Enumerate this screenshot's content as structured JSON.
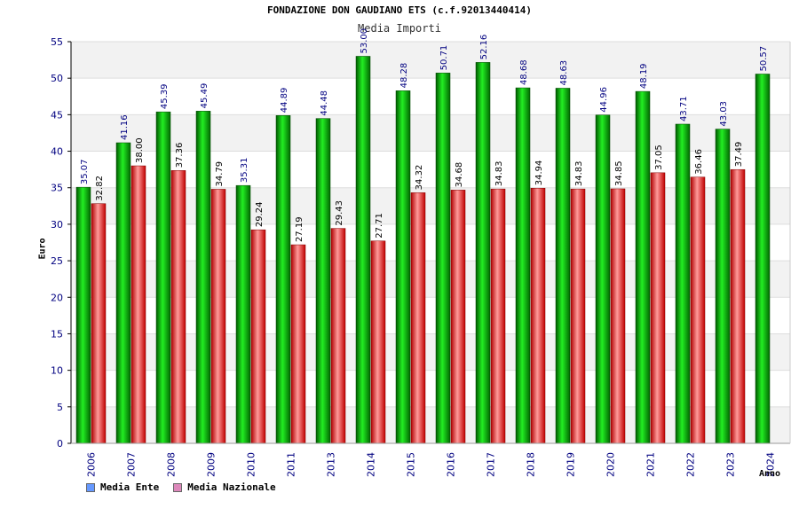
{
  "chart_data": {
    "type": "bar",
    "title": "FONDAZIONE DON GAUDIANO ETS (c.f.92013440414)",
    "subtitle": "Media Importi",
    "xlabel": "Anno",
    "ylabel": "Euro",
    "ylim": [
      0,
      55
    ],
    "yticks": [
      0,
      5,
      10,
      15,
      20,
      25,
      30,
      35,
      40,
      45,
      50,
      55
    ],
    "grid": true,
    "legend_position": "bottom-left",
    "categories": [
      "2006",
      "2007",
      "2008",
      "2009",
      "2010",
      "2011",
      "2013",
      "2014",
      "2015",
      "2016",
      "2017",
      "2018",
      "2019",
      "2020",
      "2021",
      "2022",
      "2023",
      "2024"
    ],
    "series": [
      {
        "name": "Media Ente",
        "color": "#00c000",
        "legend_color": "#6699ff",
        "values": [
          35.07,
          41.16,
          45.39,
          45.49,
          35.31,
          44.89,
          44.48,
          53.0,
          48.28,
          50.71,
          52.16,
          48.68,
          48.63,
          44.96,
          48.19,
          43.71,
          43.03,
          50.57
        ],
        "labels": [
          "35.07",
          "41.16",
          "45.39",
          "45.49",
          "35.31",
          "44.89",
          "44.48",
          "53.00",
          "48.28",
          "50.71",
          "52.16",
          "48.68",
          "48.63",
          "44.96",
          "48.19",
          "43.71",
          "43.03",
          "50.57"
        ]
      },
      {
        "name": "Media Nazionale",
        "color": "#e01010",
        "legend_color": "#dd88bb",
        "values": [
          32.82,
          38.0,
          37.36,
          34.79,
          29.24,
          27.19,
          29.43,
          27.71,
          34.32,
          34.68,
          34.83,
          34.94,
          34.83,
          34.85,
          37.05,
          36.46,
          37.49,
          null
        ],
        "labels": [
          "32.82",
          "38.00",
          "37.36",
          "34.79",
          "29.24",
          "27.19",
          "29.43",
          "27.71",
          "34.32",
          "34.68",
          "34.83",
          "34.94",
          "34.83",
          "34.85",
          "37.05",
          "36.46",
          "37.49",
          null
        ]
      }
    ]
  }
}
